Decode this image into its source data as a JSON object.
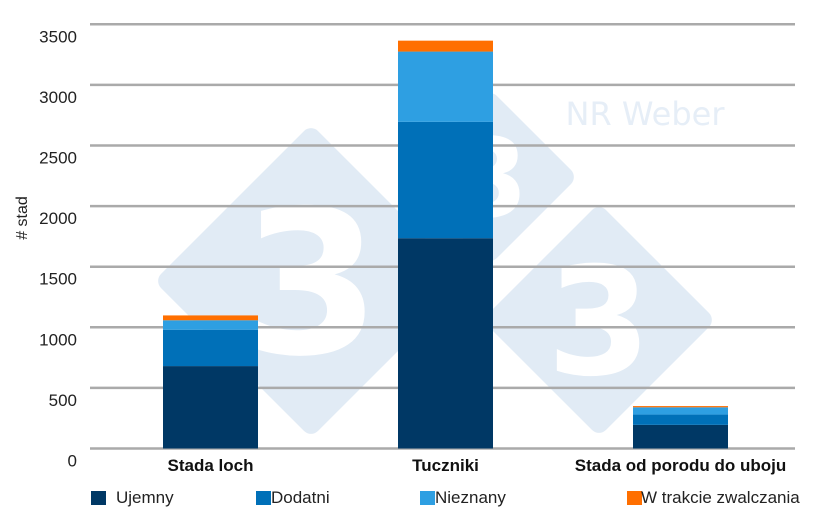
{
  "chart_data": {
    "type": "bar",
    "stacked": true,
    "title": "",
    "xlabel": "",
    "ylabel": "# stad",
    "ylim": [
      0,
      3500
    ],
    "yticks": [
      0,
      500,
      1000,
      1500,
      2000,
      2500,
      3000,
      3500
    ],
    "grid": true,
    "legend_position": "bottom",
    "categories": [
      "Stada loch",
      "Tuczniki",
      "Stada od porodu do uboju"
    ],
    "series": [
      {
        "name": "Ujemny",
        "color": "#003865",
        "values": [
          680,
          1735,
          195
        ]
      },
      {
        "name": "Dodatni",
        "color": "#0070b8",
        "values": [
          300,
          960,
          85
        ]
      },
      {
        "name": "Nieznany",
        "color": "#2e9fe2",
        "values": [
          78,
          580,
          60
        ]
      },
      {
        "name": "W trakcie zwalczania",
        "color": "#ff6f00",
        "values": [
          40,
          90,
          10
        ]
      }
    ]
  },
  "watermark": {
    "text": "NR Weber",
    "digit": "3"
  }
}
